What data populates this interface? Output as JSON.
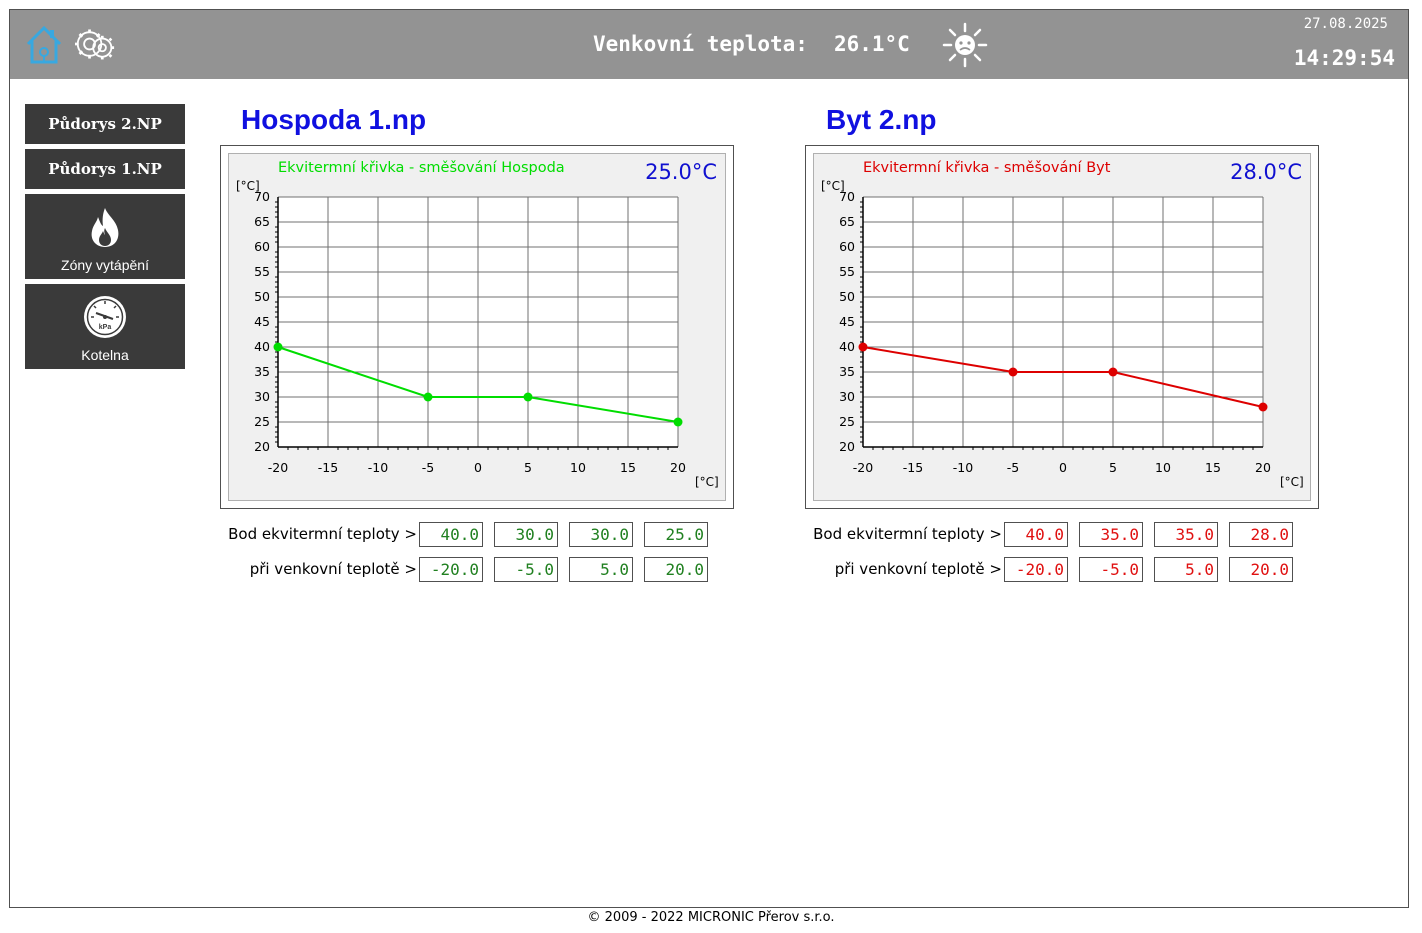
{
  "header": {
    "outdoor_label": "Venkovní teplota:",
    "outdoor_value": "26.1°C",
    "date": "27.08.2025",
    "time": "14:29:54"
  },
  "nav": [
    {
      "label": "Půdorys 2.NP"
    },
    {
      "label": "Půdorys 1.NP"
    },
    {
      "label": "Zóny vytápění",
      "icon": "flame-icon"
    },
    {
      "label": "Kotelna",
      "icon": "pressure-gauge-icon",
      "icon_text": "kPa"
    }
  ],
  "panels": [
    {
      "title": "Hospoda 1.np",
      "curve_title": "Ekvitermní křivka - směšování Hospoda",
      "setpoint": "25.0°C",
      "color": "#00dd00",
      "input_color": "#208020",
      "row1_label": "Bod ekvitermní teploty >",
      "row2_label": "při venkovní teplotě >",
      "row1_values": [
        "40.0",
        "30.0",
        "30.0",
        "25.0"
      ],
      "row2_values": [
        "-20.0",
        "-5.0",
        "5.0",
        "20.0"
      ]
    },
    {
      "title": "Byt 2.np",
      "curve_title": "Ekvitermní křivka - směšování Byt",
      "setpoint": "28.0°C",
      "color": "#dd0000",
      "input_color": "#e01010",
      "row1_label": "Bod ekvitermní teploty >",
      "row2_label": "při venkovní teplotě >",
      "row1_values": [
        "40.0",
        "35.0",
        "35.0",
        "28.0"
      ],
      "row2_values": [
        "-20.0",
        "-5.0",
        "5.0",
        "20.0"
      ]
    }
  ],
  "chart_data": [
    {
      "type": "line",
      "title": "Ekvitermní křivka - směšování Hospoda",
      "xlabel": "[°C]",
      "ylabel": "[°C]",
      "xlim": [
        -20,
        20
      ],
      "ylim": [
        20,
        70
      ],
      "x_ticks": [
        "-20",
        "-15",
        "-10",
        "-5",
        "0",
        "5",
        "10",
        "15",
        "20"
      ],
      "y_ticks": [
        "20",
        "25",
        "30",
        "35",
        "40",
        "45",
        "50",
        "55",
        "60",
        "65",
        "70"
      ],
      "grid": true,
      "series": [
        {
          "x": [
            -20,
            -5,
            5,
            20
          ],
          "y": [
            40,
            30,
            30,
            25
          ],
          "color": "#00dd00"
        }
      ]
    },
    {
      "type": "line",
      "title": "Ekvitermní křivka - směšování Byt",
      "xlabel": "[°C]",
      "ylabel": "[°C]",
      "xlim": [
        -20,
        20
      ],
      "ylim": [
        20,
        70
      ],
      "x_ticks": [
        "-20",
        "-15",
        "-10",
        "-5",
        "0",
        "5",
        "10",
        "15",
        "20"
      ],
      "y_ticks": [
        "20",
        "25",
        "30",
        "35",
        "40",
        "45",
        "50",
        "55",
        "60",
        "65",
        "70"
      ],
      "grid": true,
      "series": [
        {
          "x": [
            -20,
            -5,
            5,
            20
          ],
          "y": [
            40,
            35,
            35,
            28
          ],
          "color": "#dd0000"
        }
      ]
    }
  ],
  "footer": "© 2009 - 2022 MICRONIC Přerov s.r.o."
}
